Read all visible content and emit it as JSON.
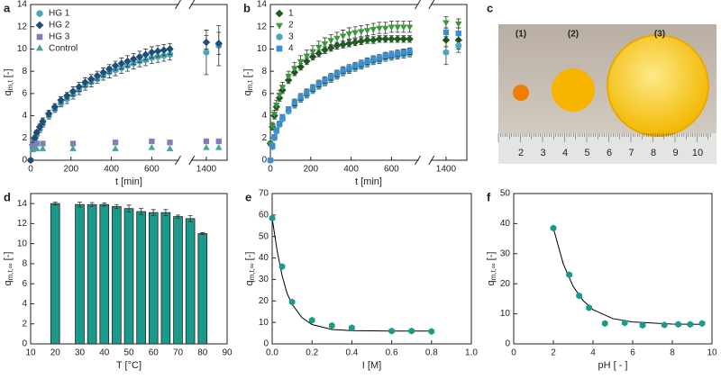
{
  "chart_data": [
    {
      "type": "scatter",
      "label": "a",
      "xlabel": "t [min]",
      "ylabel": "q",
      "ylabel_sub": "m,t",
      "ylabel_unit": "[-]",
      "xlim": [
        0,
        1500
      ],
      "x_break": [
        730,
        1330
      ],
      "xticks": [
        0,
        200,
        400,
        600,
        1400
      ],
      "ylim": [
        0,
        14
      ],
      "yticks": [
        0,
        2,
        4,
        6,
        8,
        10,
        12,
        14
      ],
      "legend": "upper left",
      "x": [
        0,
        10,
        20,
        30,
        45,
        60,
        90,
        120,
        150,
        180,
        210,
        240,
        270,
        300,
        330,
        360,
        390,
        420,
        450,
        480,
        510,
        540,
        570,
        600,
        630,
        660,
        690,
        1400,
        1460
      ],
      "series": [
        {
          "name": "HG 1",
          "color": "#4aa6b8",
          "marker": "hexagon",
          "values": [
            0,
            1.2,
            1.8,
            2.3,
            2.8,
            3.3,
            4.0,
            4.6,
            5.1,
            5.5,
            5.9,
            6.3,
            6.7,
            7.0,
            7.3,
            7.6,
            7.9,
            8.1,
            8.3,
            8.5,
            8.7,
            8.9,
            9.0,
            9.2,
            9.3,
            9.4,
            9.5,
            9.7,
            10.3
          ],
          "errors": [
            0,
            0.2,
            0.2,
            0.3,
            0.3,
            0.3,
            0.3,
            0.3,
            0.3,
            0.4,
            0.4,
            0.4,
            0.4,
            0.4,
            0.4,
            0.4,
            0.5,
            0.5,
            0.5,
            0.5,
            0.5,
            0.5,
            0.5,
            0.5,
            0.5,
            0.5,
            0.5,
            2.0,
            1.8
          ]
        },
        {
          "name": "HG 2",
          "color": "#1f4e79",
          "marker": "diamond",
          "values": [
            0,
            1.4,
            2.0,
            2.5,
            3.0,
            3.5,
            4.2,
            4.8,
            5.4,
            5.8,
            6.2,
            6.6,
            7.0,
            7.3,
            7.6,
            7.9,
            8.2,
            8.5,
            8.7,
            8.9,
            9.1,
            9.3,
            9.5,
            9.7,
            9.8,
            9.9,
            10.0,
            10.6,
            10.5
          ],
          "errors": [
            0,
            0.2,
            0.2,
            0.2,
            0.3,
            0.3,
            0.3,
            0.3,
            0.3,
            0.3,
            0.4,
            0.4,
            0.4,
            0.4,
            0.4,
            0.4,
            0.4,
            0.4,
            0.5,
            0.5,
            0.5,
            0.5,
            0.5,
            0.5,
            0.5,
            0.5,
            0.5,
            0.6,
            1.0
          ]
        },
        {
          "name": "HG 3",
          "color": "#7d7fb5",
          "marker": "square",
          "values": [
            null,
            1.3,
            null,
            1.5,
            null,
            1.5,
            null,
            null,
            null,
            null,
            1.5,
            null,
            null,
            null,
            null,
            null,
            null,
            1.6,
            null,
            null,
            null,
            null,
            null,
            1.7,
            null,
            null,
            1.6,
            1.7,
            1.7
          ]
        },
        {
          "name": "Control",
          "color": "#3fa89a",
          "marker": "triangle",
          "values": [
            null,
            0.9,
            null,
            1.0,
            null,
            1.0,
            null,
            null,
            null,
            null,
            1.0,
            null,
            null,
            null,
            null,
            null,
            null,
            1.0,
            null,
            null,
            null,
            null,
            null,
            1.1,
            null,
            null,
            1.0,
            1.1,
            1.1
          ]
        }
      ]
    },
    {
      "type": "scatter",
      "label": "b",
      "xlabel": "t [min]",
      "ylabel": "q",
      "ylabel_sub": "m,t",
      "ylabel_unit": "[-]",
      "xlim": [
        0,
        1500
      ],
      "x_break": [
        730,
        1330
      ],
      "xticks": [
        0,
        200,
        400,
        600,
        1400
      ],
      "ylim": [
        0,
        14
      ],
      "yticks": [
        0,
        2,
        4,
        6,
        8,
        10,
        12,
        14
      ],
      "legend": "upper left",
      "x": [
        0,
        10,
        20,
        30,
        45,
        60,
        90,
        120,
        150,
        180,
        210,
        240,
        270,
        300,
        330,
        360,
        390,
        420,
        450,
        480,
        510,
        540,
        570,
        600,
        630,
        660,
        690,
        1400,
        1460
      ],
      "series": [
        {
          "name": "1",
          "color": "#1d5e20",
          "marker": "diamond",
          "values": [
            1.5,
            3.0,
            4.0,
            4.8,
            5.6,
            6.3,
            7.2,
            7.9,
            8.4,
            8.9,
            9.3,
            9.6,
            9.9,
            10.1,
            10.3,
            10.4,
            10.5,
            10.6,
            10.7,
            10.8,
            10.8,
            10.9,
            10.9,
            10.9,
            10.9,
            10.9,
            10.9,
            10.8,
            10.8
          ],
          "errors": [
            0.2,
            0.3,
            0.3,
            0.3,
            0.3,
            0.3,
            0.3,
            0.3,
            0.3,
            0.3,
            0.3,
            0.3,
            0.3,
            0.3,
            0.3,
            0.3,
            0.3,
            0.3,
            0.3,
            0.3,
            0.3,
            0.3,
            0.3,
            0.3,
            0.3,
            0.3,
            0.3,
            0.6,
            0.8
          ]
        },
        {
          "name": "2",
          "color": "#3a9a3a",
          "marker": "triangle-down",
          "values": [
            1.5,
            3.1,
            4.2,
            5.0,
            5.9,
            6.6,
            7.6,
            8.3,
            8.9,
            9.4,
            9.8,
            10.2,
            10.5,
            10.8,
            11.0,
            11.2,
            11.4,
            11.5,
            11.6,
            11.7,
            11.8,
            11.9,
            11.9,
            12.0,
            12.0,
            12.0,
            12.0,
            12.4,
            12.3
          ],
          "errors": [
            0.2,
            0.3,
            0.3,
            0.4,
            0.4,
            0.4,
            0.4,
            0.5,
            0.5,
            0.5,
            0.5,
            0.5,
            0.5,
            0.5,
            0.5,
            0.5,
            0.5,
            0.5,
            0.5,
            0.5,
            0.5,
            0.5,
            0.5,
            0.5,
            0.5,
            0.5,
            0.5,
            0.5,
            0.4
          ]
        },
        {
          "name": "3",
          "color": "#4aa6b8",
          "marker": "hexagon",
          "values": [
            0,
            1.2,
            2.0,
            2.6,
            3.2,
            3.7,
            4.4,
            5.0,
            5.5,
            5.9,
            6.3,
            6.7,
            7.0,
            7.3,
            7.6,
            7.9,
            8.1,
            8.3,
            8.5,
            8.7,
            8.9,
            9.0,
            9.2,
            9.3,
            9.4,
            9.5,
            9.6,
            9.7,
            10.3
          ],
          "errors": [
            0,
            0.2,
            0.2,
            0.2,
            0.2,
            0.2,
            0.2,
            0.3,
            0.3,
            0.3,
            0.3,
            0.3,
            0.3,
            0.3,
            0.3,
            0.3,
            0.3,
            0.3,
            0.3,
            0.3,
            0.3,
            0.3,
            0.3,
            0.3,
            0.3,
            0.3,
            0.3,
            1.1,
            0.6
          ]
        },
        {
          "name": "4",
          "color": "#3b8fd0",
          "marker": "square",
          "values": [
            0,
            1.3,
            2.1,
            2.7,
            3.3,
            3.9,
            4.6,
            5.2,
            5.7,
            6.1,
            6.5,
            6.9,
            7.2,
            7.5,
            7.8,
            8.1,
            8.3,
            8.5,
            8.7,
            8.9,
            9.1,
            9.2,
            9.4,
            9.5,
            9.6,
            9.7,
            9.8,
            11.5,
            11.4
          ],
          "errors": [
            0,
            0.2,
            0.2,
            0.2,
            0.2,
            0.2,
            0.2,
            0.3,
            0.3,
            0.3,
            0.3,
            0.3,
            0.3,
            0.3,
            0.3,
            0.3,
            0.3,
            0.3,
            0.3,
            0.3,
            0.3,
            0.3,
            0.3,
            0.3,
            0.3,
            0.3,
            0.3,
            0.4,
            0.5
          ]
        }
      ]
    },
    {
      "type": "bar",
      "label": "d",
      "xlabel": "T [°C]",
      "ylabel": "q",
      "ylabel_sub": "m,t,∞",
      "ylabel_unit": "[-]",
      "xlim": [
        10,
        90
      ],
      "xticks": [
        10,
        20,
        30,
        40,
        50,
        60,
        70,
        80,
        90
      ],
      "ylim": [
        0,
        15
      ],
      "yticks": [
        0,
        2,
        4,
        6,
        8,
        10,
        12,
        14
      ],
      "color": "#1a9a8a",
      "x": [
        20,
        30,
        35,
        40,
        45,
        50,
        55,
        60,
        65,
        70,
        75,
        80
      ],
      "values": [
        14.0,
        13.9,
        13.9,
        13.9,
        13.7,
        13.5,
        13.2,
        13.1,
        13.1,
        12.7,
        12.5,
        11.0
      ],
      "errors": [
        0.15,
        0.25,
        0.2,
        0.15,
        0.2,
        0.35,
        0.3,
        0.3,
        0.3,
        0.15,
        0.3,
        0.1
      ]
    },
    {
      "type": "scatter",
      "label": "e",
      "xlabel": "I [M]",
      "ylabel": "q",
      "ylabel_sub": "m,t,∞",
      "ylabel_unit": "[-]",
      "xlim": [
        0,
        1
      ],
      "xticks": [
        {
          "value": 0,
          "label": "0.0"
        },
        0.2,
        0.4,
        0.6,
        0.8,
        {
          "value": 1,
          "label": "1.0"
        }
      ],
      "ylim": [
        0,
        70
      ],
      "yticks": [
        0,
        10,
        20,
        30,
        40,
        50,
        60,
        70
      ],
      "series": [
        {
          "color": "#000000",
          "style": "line",
          "x": [
            0,
            0.025,
            0.05,
            0.075,
            0.1,
            0.15,
            0.2,
            0.3,
            0.4,
            0.6,
            0.8
          ],
          "values": [
            58.5,
            43.3,
            31.7,
            23.5,
            18.4,
            12.2,
            9.0,
            6.7,
            6.2,
            6.0,
            6.0
          ]
        },
        {
          "color": "#1a9a8a",
          "marker": "hexagon",
          "x": [
            0,
            0.05,
            0.1,
            0.2,
            0.3,
            0.4,
            0.6,
            0.7,
            0.8
          ],
          "values": [
            58.5,
            36,
            19.5,
            11,
            8.5,
            7.5,
            6,
            6,
            5.8
          ]
        }
      ]
    },
    {
      "type": "scatter",
      "label": "f",
      "xlabel": "pH [ - ]",
      "ylabel": "q",
      "ylabel_sub": "m,t,∞",
      "ylabel_unit": "[-]",
      "xlim": [
        0,
        10
      ],
      "xticks": [
        0,
        2,
        4,
        6,
        8,
        10
      ],
      "ylim": [
        0,
        50
      ],
      "yticks": [
        0,
        10,
        20,
        30,
        40,
        50
      ],
      "series": [
        {
          "color": "#000000",
          "style": "line",
          "x": [
            2,
            2.5,
            3,
            3.5,
            4,
            5,
            6,
            8,
            9.5
          ],
          "values": [
            38.5,
            26.6,
            19.1,
            14.4,
            11.4,
            8.4,
            7.3,
            6.6,
            6.5
          ]
        },
        {
          "color": "#1a9a8a",
          "marker": "hexagon",
          "x": [
            2,
            2.8,
            3.3,
            3.8,
            4.6,
            5.6,
            6.5,
            7.6,
            8.3,
            8.9,
            9.5
          ],
          "values": [
            38.5,
            23,
            16,
            12,
            6.8,
            7,
            6.2,
            6.3,
            6.5,
            6.5,
            6.8
          ]
        }
      ]
    }
  ],
  "photo": {
    "label": "c",
    "captions": [
      "(1)",
      "(2)",
      "(3)"
    ],
    "ruler_labels": [
      "2",
      "3",
      "4",
      "5",
      "6",
      "7",
      "8",
      "9",
      "10"
    ]
  }
}
